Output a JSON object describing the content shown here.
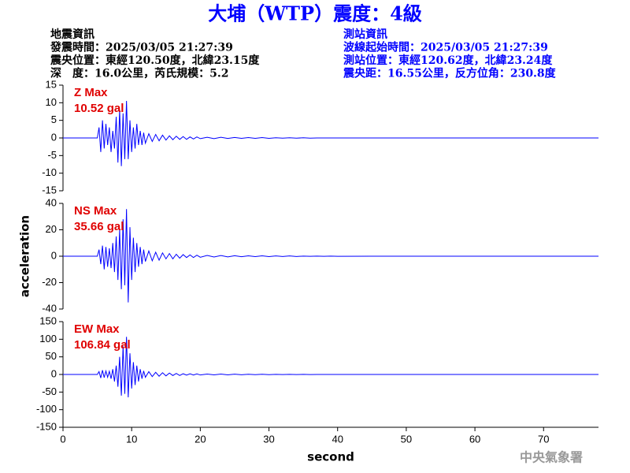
{
  "header": {
    "title": "大埔（WTP）震度：4級",
    "left": [
      "地震資訊",
      "發震時間：2025/03/05 21:27:39",
      "震央位置：東經120.50度，北緯23.15度",
      "深　度：16.0公里，芮氏規模：5.2"
    ],
    "right": [
      "測站資訊",
      "波線起始時間：2025/03/05 21:27:39",
      "測站位置：東經120.62度，北緯23.24度",
      "震央距：16.55公里，反方位角：230.8度"
    ],
    "footer": "中央氣象署"
  },
  "chart_data": [
    {
      "type": "line",
      "annotations": [
        "Z Max",
        "10.52 gal"
      ],
      "color": "#0000ff",
      "x": [
        0,
        5,
        5.25,
        5.5,
        5.75,
        6,
        6.25,
        6.5,
        6.75,
        7,
        7.25,
        7.5,
        7.75,
        8,
        8.25,
        8.5,
        8.75,
        9,
        9.25,
        9.5,
        9.75,
        10,
        10.25,
        10.5,
        10.75,
        11,
        11.25,
        11.5,
        11.75,
        12,
        12.5,
        13,
        13.5,
        14,
        14.5,
        15,
        15.5,
        16,
        16.5,
        17,
        17.5,
        18,
        18.5,
        19,
        19.5,
        20,
        21,
        22,
        23,
        24,
        25,
        26,
        27,
        28,
        29,
        30,
        31,
        32,
        33,
        34,
        35,
        36,
        37,
        38,
        39,
        40,
        45,
        78
      ],
      "values": [
        0,
        0,
        3,
        -4,
        5,
        -3,
        4,
        -2,
        3,
        -4,
        2,
        -3,
        6,
        -7,
        8,
        -8,
        7,
        -6,
        10.52,
        -6,
        5,
        -4,
        3,
        -3,
        4,
        -2,
        2,
        -2,
        1.5,
        -1.5,
        1.2,
        -1,
        1,
        -0.8,
        0.8,
        -0.6,
        0.6,
        -0.5,
        0.5,
        -0.4,
        0.4,
        -0.4,
        0.3,
        -0.3,
        0.3,
        -0.2,
        0.2,
        -0.2,
        0.2,
        -0.15,
        0.15,
        -0.1,
        0.1,
        -0.1,
        0.1,
        -0.1,
        0.05,
        -0.05,
        0.05,
        -0.05,
        0.05,
        -0.05,
        0,
        0,
        0,
        0,
        0,
        0
      ],
      "xlim": [
        0,
        78
      ],
      "ylim": [
        -15,
        15
      ],
      "yticks": [
        15,
        10,
        5,
        0,
        -5,
        -10,
        -15
      ]
    },
    {
      "type": "line",
      "annotations": [
        "NS Max",
        "35.66 gal"
      ],
      "color": "#0000ff",
      "ylabel": "acceleration",
      "x": [
        0,
        5,
        5.25,
        5.5,
        5.75,
        6,
        6.25,
        6.5,
        6.75,
        7,
        7.25,
        7.5,
        7.75,
        8,
        8.25,
        8.5,
        8.75,
        9,
        9.25,
        9.5,
        9.75,
        10,
        10.25,
        10.5,
        10.75,
        11,
        11.25,
        11.5,
        11.75,
        12,
        12.5,
        13,
        13.5,
        14,
        14.5,
        15,
        15.5,
        16,
        16.5,
        17,
        17.5,
        18,
        18.5,
        19,
        19.5,
        20,
        21,
        22,
        23,
        24,
        25,
        26,
        27,
        28,
        29,
        30,
        31,
        32,
        33,
        34,
        35,
        36,
        37,
        38,
        39,
        40,
        45,
        78
      ],
      "values": [
        0,
        0,
        5,
        -6,
        8,
        -10,
        7,
        -8,
        6,
        -9,
        10,
        -12,
        15,
        -18,
        20,
        -25,
        28,
        -22,
        35.66,
        -35,
        22,
        -18,
        14,
        -12,
        10,
        -8,
        7,
        -6,
        5,
        -4,
        4,
        -3.5,
        3,
        -3,
        2.5,
        -2,
        2,
        -2,
        1.5,
        -1.5,
        1.2,
        -1,
        1,
        -1,
        0.8,
        -0.8,
        0.6,
        -0.6,
        0.5,
        -0.5,
        0.4,
        -0.4,
        0.3,
        -0.3,
        0.3,
        -0.3,
        0.2,
        -0.2,
        0.2,
        -0.2,
        0.1,
        -0.1,
        0.1,
        -0.1,
        0.1,
        -0.1,
        0,
        0
      ],
      "xlim": [
        0,
        78
      ],
      "ylim": [
        -40,
        40
      ],
      "yticks": [
        40,
        20,
        0,
        -20,
        -40
      ]
    },
    {
      "type": "line",
      "annotations": [
        "EW Max",
        "106.84 gal"
      ],
      "color": "#0000ff",
      "xlabel": "second",
      "x": [
        0,
        5,
        5.25,
        5.5,
        5.75,
        6,
        6.25,
        6.5,
        6.75,
        7,
        7.25,
        7.5,
        7.75,
        8,
        8.25,
        8.5,
        8.75,
        9,
        9.25,
        9.5,
        9.75,
        10,
        10.25,
        10.5,
        10.75,
        11,
        11.25,
        11.5,
        11.75,
        12,
        12.5,
        13,
        13.5,
        14,
        14.5,
        15,
        15.5,
        16,
        16.5,
        17,
        17.5,
        18,
        18.5,
        19,
        19.5,
        20,
        21,
        22,
        23,
        24,
        25,
        26,
        27,
        28,
        29,
        30,
        31,
        32,
        33,
        34,
        35,
        36,
        37,
        38,
        39,
        40,
        45,
        78
      ],
      "values": [
        0,
        0,
        8,
        -10,
        12,
        -9,
        10,
        -8,
        9,
        -12,
        15,
        -20,
        25,
        -35,
        50,
        -60,
        80,
        -55,
        106.84,
        -65,
        60,
        -40,
        35,
        -30,
        25,
        -20,
        15,
        -12,
        10,
        -8,
        8,
        -6,
        6,
        -5,
        5,
        -4,
        4,
        -3,
        3,
        -3,
        2,
        -2,
        2,
        -1.5,
        1.5,
        -1.5,
        1,
        -1,
        1,
        -1,
        0.8,
        -0.8,
        0.6,
        -0.6,
        0.5,
        -0.5,
        0.4,
        -0.4,
        0.3,
        -0.3,
        0.2,
        -0.2,
        0.1,
        -0.1,
        0,
        0,
        0,
        0
      ],
      "xlim": [
        0,
        78
      ],
      "ylim": [
        -150,
        150
      ],
      "yticks": [
        150,
        100,
        50,
        0,
        -50,
        -100,
        -150
      ],
      "xticks": [
        0,
        10,
        20,
        30,
        40,
        50,
        60,
        70
      ]
    }
  ]
}
